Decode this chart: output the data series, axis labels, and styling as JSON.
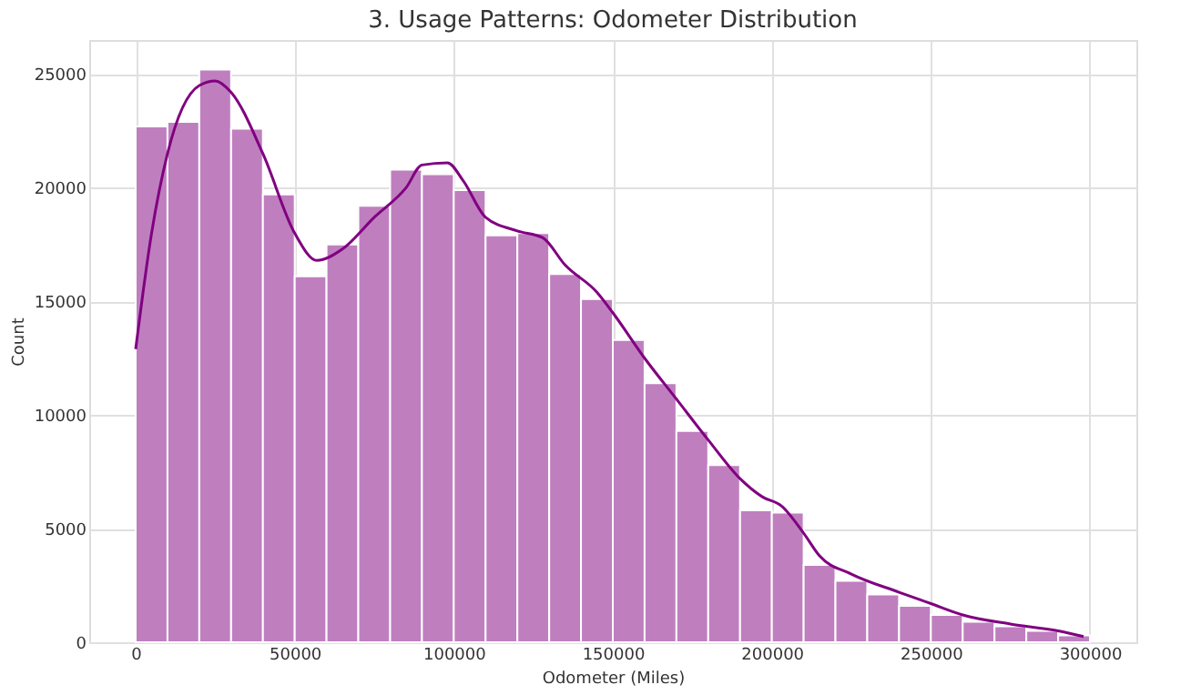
{
  "chart_data": {
    "type": "histogram",
    "title": "3. Usage Patterns: Odometer Distribution",
    "xlabel": "Odometer (Miles)",
    "ylabel": "Count",
    "series": [
      {
        "color": "#bf7fbf",
        "bins": [
          0,
          10000,
          20000,
          30000,
          40000,
          50000,
          60000,
          70000,
          80000,
          90000,
          100000,
          110000,
          120000,
          130000,
          140000,
          150000,
          160000,
          170000,
          180000,
          190000,
          200000,
          210000,
          220000,
          230000,
          240000,
          250000,
          260000,
          270000,
          280000,
          290000,
          300000
        ],
        "values": [
          22700,
          22900,
          25200,
          22600,
          19700,
          16100,
          17500,
          19200,
          20800,
          20600,
          19900,
          17900,
          18000,
          16200,
          15100,
          13300,
          11400,
          9300,
          7800,
          5800,
          5700,
          3400,
          2700,
          2100,
          1600,
          1200,
          900,
          700,
          500,
          300
        ]
      },
      {
        "type": "line",
        "color": "#800080",
        "x": [
          0,
          5000,
          10000,
          20000,
          25000,
          30000,
          40000,
          50000,
          57000,
          65000,
          75000,
          85000,
          90000,
          98000,
          103000,
          110000,
          120000,
          128000,
          135000,
          145000,
          150000,
          160000,
          170000,
          180000,
          190000,
          197000,
          203000,
          210000,
          215000,
          225000,
          240000,
          250000,
          260000,
          275000,
          290000,
          298000
        ],
        "values": [
          12900,
          18000,
          21500,
          24500,
          24700,
          24200,
          21500,
          18000,
          16800,
          17300,
          18700,
          20000,
          21000,
          21100,
          20300,
          18700,
          18100,
          17800,
          16600,
          15400,
          14500,
          12500,
          10700,
          8900,
          7200,
          6400,
          6000,
          4800,
          3800,
          3000,
          2200,
          1700,
          1200,
          800,
          500,
          250
        ]
      }
    ],
    "xlim": [
      -14600,
      314600
    ],
    "xticks": [
      0,
      50000,
      100000,
      150000,
      200000,
      250000,
      300000
    ],
    "ylim": [
      0,
      26500
    ],
    "yticks": [
      0,
      5000,
      10000,
      15000,
      20000,
      25000
    ],
    "grid": true
  }
}
